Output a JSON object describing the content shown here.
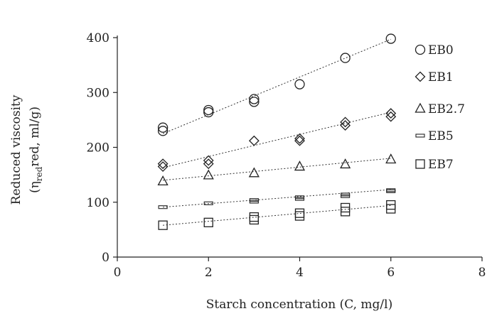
{
  "chart_data": {
    "type": "scatter",
    "xlabel": "Starch concentration (C, mg/l)",
    "ylabel_line1": "Reduced viscosity",
    "ylabel_line2_prefix": "(η",
    "ylabel_line2_sub": "red",
    "ylabel_line2_suffix": "red, ml/g)",
    "xlim": [
      0,
      8
    ],
    "ylim": [
      0,
      400
    ],
    "xticks": [
      0,
      2,
      4,
      6,
      8
    ],
    "yticks": [
      0,
      100,
      200,
      300,
      400
    ],
    "grid": false,
    "legend_position": "right",
    "series": [
      {
        "name": "EB0",
        "marker": "circle",
        "x": [
          1,
          1,
          2,
          2,
          3,
          3,
          4,
          5,
          6
        ],
        "y": [
          230,
          236,
          264,
          268,
          283,
          288,
          315,
          363,
          398
        ],
        "fit": [
          [
            1,
            225
          ],
          [
            6,
            397
          ]
        ]
      },
      {
        "name": "EB1",
        "marker": "diamond",
        "x": [
          1,
          1,
          2,
          2,
          3,
          4,
          4,
          5,
          5,
          6,
          6
        ],
        "y": [
          165,
          170,
          170,
          176,
          212,
          212,
          216,
          240,
          246,
          256,
          262
        ],
        "fit": [
          [
            1,
            163
          ],
          [
            6,
            264
          ]
        ]
      },
      {
        "name": "EB2.7",
        "marker": "triangle",
        "x": [
          1,
          2,
          3,
          4,
          5,
          6
        ],
        "y": [
          138,
          149,
          153,
          165,
          169,
          178
        ],
        "fit": [
          [
            1,
            140
          ],
          [
            6,
            180
          ]
        ]
      },
      {
        "name": "EB5",
        "marker": "bar",
        "x": [
          1,
          2,
          3,
          3,
          4,
          4,
          5,
          5,
          6,
          6
        ],
        "y": [
          91,
          98,
          101,
          104,
          106,
          109,
          111,
          114,
          120,
          122
        ],
        "fit": [
          [
            1,
            91
          ],
          [
            6,
            123
          ]
        ]
      },
      {
        "name": "EB7",
        "marker": "square",
        "x": [
          1,
          2,
          3,
          3,
          4,
          4,
          5,
          5,
          6,
          6
        ],
        "y": [
          58,
          63,
          68,
          73,
          75,
          80,
          83,
          90,
          88,
          95
        ],
        "fit": [
          [
            1,
            58
          ],
          [
            6,
            94
          ]
        ]
      }
    ]
  }
}
